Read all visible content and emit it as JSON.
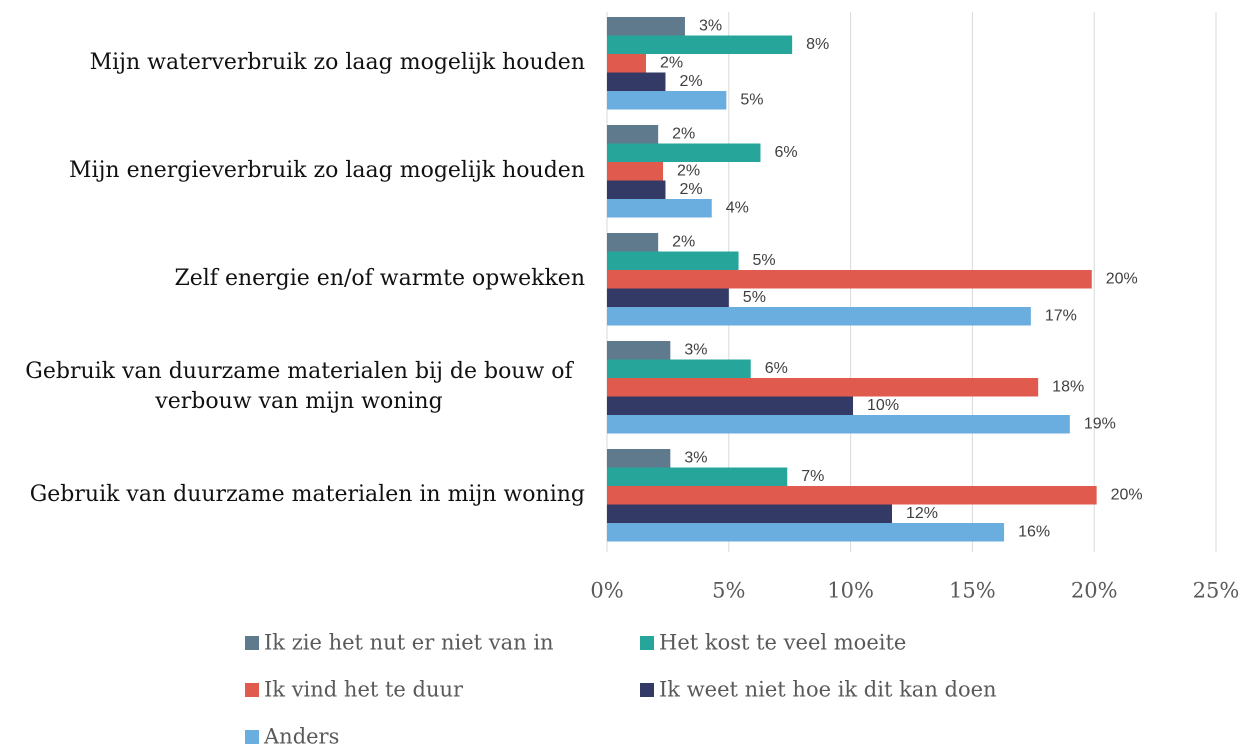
{
  "chart_data": {
    "type": "hbar",
    "categories": [
      "Mijn waterverbruik zo laag mogelijk houden",
      "Mijn energieverbruik zo laag mogelijk houden",
      "Zelf energie en/of warmte opwekken",
      "Gebruik van duurzame materialen bij de bouw of verbouw van mijn woning",
      "Gebruik van duurzame materialen in mijn woning"
    ],
    "series": [
      {
        "name": "Ik zie het nut er niet van in",
        "color": "#5f7a8c",
        "values": [
          3.2,
          2.1,
          2.1,
          2.6,
          2.6
        ],
        "value_labels": [
          "3%",
          "2%",
          "2%",
          "3%",
          "3%"
        ]
      },
      {
        "name": "Het kost te veel moeite",
        "color": "#26a69a",
        "values": [
          7.6,
          6.3,
          5.4,
          5.9,
          7.4
        ],
        "value_labels": [
          "8%",
          "6%",
          "5%",
          "6%",
          "7%"
        ]
      },
      {
        "name": "Ik vind het te duur",
        "color": "#e05a4e",
        "values": [
          1.6,
          2.3,
          19.9,
          17.7,
          20.1
        ],
        "value_labels": [
          "2%",
          "2%",
          "20%",
          "18%",
          "20%"
        ]
      },
      {
        "name": "Ik weet niet hoe ik dit kan doen",
        "color": "#343a66",
        "values": [
          2.4,
          2.4,
          5.0,
          10.1,
          11.7
        ],
        "value_labels": [
          "2%",
          "2%",
          "5%",
          "10%",
          "12%"
        ]
      },
      {
        "name": "Anders",
        "color": "#6aaee0",
        "values": [
          4.9,
          4.3,
          17.4,
          19.0,
          16.3
        ],
        "value_labels": [
          "5%",
          "4%",
          "17%",
          "19%",
          "16%"
        ]
      }
    ],
    "xlim": [
      0,
      25
    ],
    "xticks": [
      {
        "value": 0,
        "label": "0%"
      },
      {
        "value": 5,
        "label": "5%"
      },
      {
        "value": 10,
        "label": "10%"
      },
      {
        "value": 15,
        "label": "15%"
      },
      {
        "value": 20,
        "label": "20%"
      },
      {
        "value": 25,
        "label": "25%"
      }
    ],
    "grid": true,
    "legend": "bottom"
  }
}
